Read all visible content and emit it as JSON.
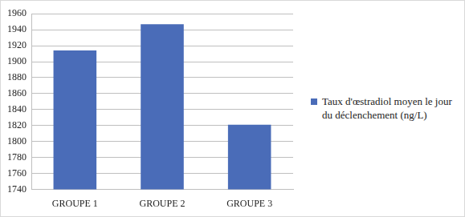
{
  "chart_data": {
    "type": "bar",
    "categories": [
      "GROUPE 1",
      "GROUPE 2",
      "GROUPE 3"
    ],
    "series": [
      {
        "name": "Taux d'œstradiol moyen le jour du déclenchement (ng/L)",
        "color": "#4a6cb8",
        "values": [
          1914,
          1947,
          1821
        ]
      }
    ],
    "ylim": [
      1740,
      1960
    ],
    "yticks": [
      1740,
      1760,
      1780,
      1800,
      1820,
      1840,
      1860,
      1880,
      1900,
      1920,
      1940,
      1960
    ],
    "grid": true,
    "legend": "right"
  }
}
